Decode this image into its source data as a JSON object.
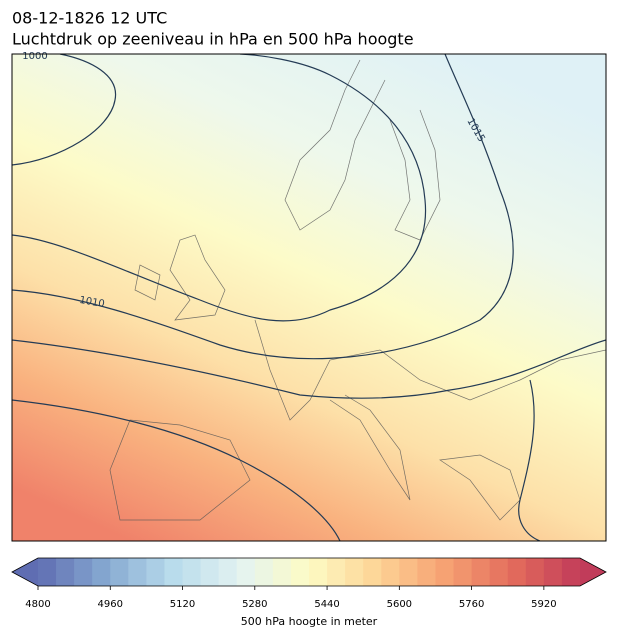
{
  "title": {
    "line1": "08-12-1826 12 UTC",
    "line2": "Luchtdruk op zeeniveau in hPa en 500 hPa hoogte"
  },
  "map": {
    "contour_labels": [
      "1000",
      "1015",
      "1010"
    ]
  },
  "colorbar": {
    "label": "500 hPa hoogte in meter",
    "range": [
      4800,
      6000
    ],
    "ticks": [
      4800,
      4960,
      5120,
      5280,
      5440,
      5600,
      5760,
      5920
    ],
    "colors": [
      "#5f6db2",
      "#86a9d1",
      "#b9dcec",
      "#e4f3f1",
      "#fdfbc4",
      "#fdd496",
      "#f6a273",
      "#e36c5c",
      "#c13c5a"
    ]
  }
}
